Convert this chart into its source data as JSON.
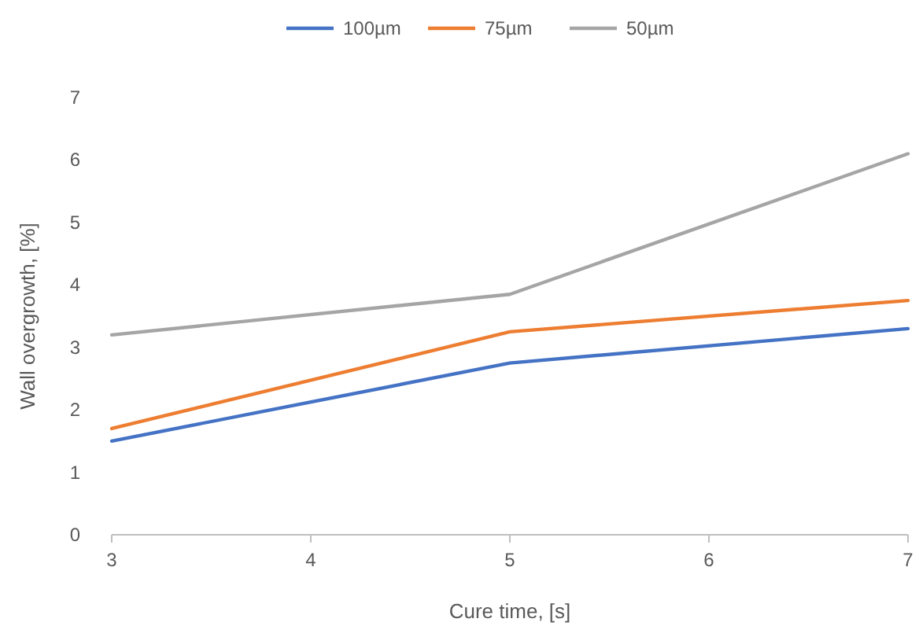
{
  "chart_data": {
    "type": "line",
    "xlabel": "Cure time, [s]",
    "ylabel": "Wall overgrowth, [%]",
    "x": [
      3,
      5,
      7
    ],
    "xlim": [
      3,
      7
    ],
    "xticks": [
      3,
      4,
      5,
      6,
      7
    ],
    "ylim": [
      0,
      7
    ],
    "yticks": [
      0,
      1,
      2,
      3,
      4,
      5,
      6,
      7
    ],
    "legend": "top",
    "grid": false,
    "series": [
      {
        "name": "100µm",
        "color": "#4472c4",
        "values": [
          1.5,
          2.75,
          3.3
        ]
      },
      {
        "name": "75µm",
        "color": "#ed7d31",
        "values": [
          1.7,
          3.25,
          3.75
        ]
      },
      {
        "name": "50µm",
        "color": "#a5a5a5",
        "values": [
          3.2,
          3.85,
          6.1
        ]
      }
    ]
  }
}
